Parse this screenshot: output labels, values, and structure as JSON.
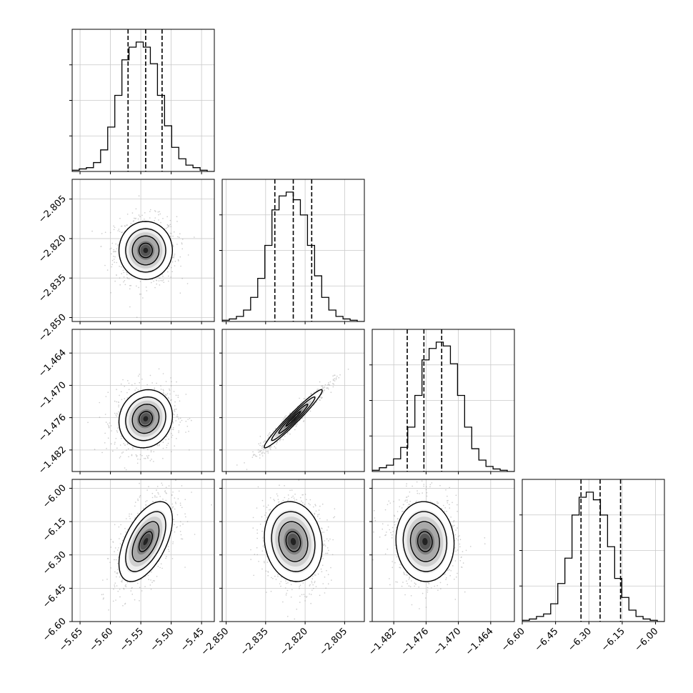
{
  "chart_data": {
    "type": "corner",
    "parameters": [
      {
        "ticks": [
          -5.65,
          -5.6,
          -5.55,
          -5.5,
          -5.45
        ],
        "tick_labels": [
          "−5.65",
          "−5.60",
          "−5.55",
          "−5.50",
          "−5.45"
        ],
        "range": [
          -5.663,
          -5.429
        ]
      },
      {
        "ticks": [
          -2.85,
          -2.835,
          -2.82,
          -2.805
        ],
        "tick_labels": [
          "−2.850",
          "−2.835",
          "−2.820",
          "−2.805"
        ],
        "range": [
          -2.8515,
          -2.7975
        ]
      },
      {
        "ticks": [
          -1.482,
          -1.476,
          -1.47,
          -1.464
        ],
        "tick_labels": [
          "−1.482",
          "−1.476",
          "−1.470",
          "−1.464"
        ],
        "range": [
          -1.486,
          -1.4596
        ]
      },
      {
        "ticks": [
          -6.6,
          -6.45,
          -6.3,
          -6.15,
          -6.0
        ],
        "tick_labels": [
          "−6.60",
          "−6.45",
          "−6.30",
          "−6.15",
          "−6.00"
        ],
        "range": [
          -6.6,
          -5.96
        ]
      }
    ],
    "marginals": [
      {
        "quantiles": [
          -5.571,
          -5.542,
          -5.515
        ],
        "counts": [
          1,
          2,
          3,
          7,
          17,
          35,
          60,
          88,
          98,
          102,
          98,
          85,
          60,
          36,
          19,
          10,
          5,
          3,
          1,
          0
        ]
      },
      {
        "quantiles": [
          -2.8315,
          -2.8245,
          -2.8175
        ],
        "counts": [
          1,
          2,
          4,
          9,
          19,
          34,
          60,
          88,
          99,
          102,
          96,
          84,
          60,
          36,
          19,
          9,
          4,
          2,
          1,
          0
        ]
      },
      {
        "quantiles": [
          -1.4795,
          -1.4764,
          -1.4731
        ],
        "counts": [
          1,
          3,
          5,
          10,
          19,
          35,
          60,
          88,
          97,
          102,
          99,
          85,
          60,
          35,
          18,
          9,
          4,
          2,
          1,
          0
        ]
      },
      {
        "quantiles": [
          -6.3355,
          -6.2495,
          -6.1575
        ],
        "counts": [
          1,
          2,
          4,
          6,
          14,
          30,
          50,
          84,
          98,
          102,
          96,
          84,
          59,
          34,
          19,
          9,
          4,
          2,
          1,
          0
        ]
      }
    ],
    "joints": [
      {
        "row": 1,
        "col": 0,
        "mean": [
          -5.542,
          -2.8245
        ],
        "sd": [
          0.022,
          0.0055
        ],
        "rho": 0.0
      },
      {
        "row": 2,
        "col": 0,
        "mean": [
          -5.542,
          -1.4762
        ],
        "sd": [
          0.022,
          0.0027
        ],
        "rho": 0.1
      },
      {
        "row": 2,
        "col": 1,
        "mean": [
          -2.8245,
          -1.4762
        ],
        "sd": [
          0.0055,
          0.0027
        ],
        "rho": 0.97
      },
      {
        "row": 3,
        "col": 0,
        "mean": [
          -5.542,
          -6.24
        ],
        "sd": [
          0.022,
          0.09
        ],
        "rho": 0.55
      },
      {
        "row": 3,
        "col": 1,
        "mean": [
          -2.8245,
          -6.24
        ],
        "sd": [
          0.0055,
          0.09
        ],
        "rho": -0.12
      },
      {
        "row": 3,
        "col": 2,
        "mean": [
          -1.4762,
          -6.24
        ],
        "sd": [
          0.0027,
          0.09
        ],
        "rho": -0.05
      }
    ],
    "contour_levels": [
      0.5,
      1.0,
      1.5,
      2.0
    ],
    "grid": true,
    "title": "",
    "xlabel": "",
    "ylabel": ""
  }
}
